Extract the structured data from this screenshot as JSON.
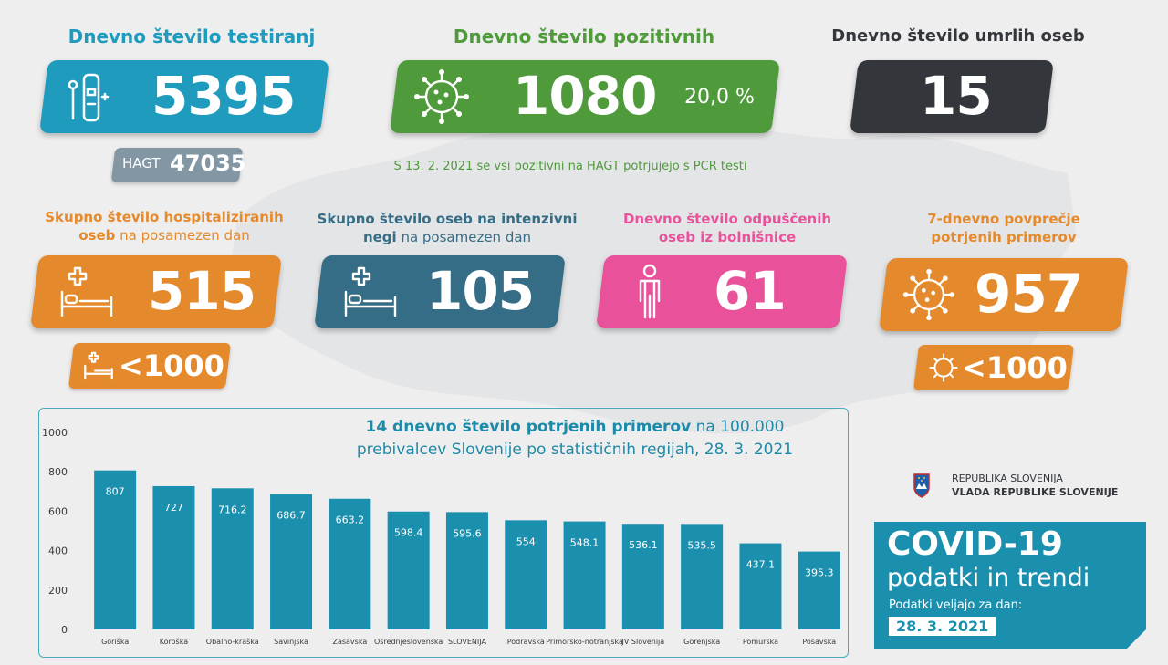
{
  "testing": {
    "title": "Dnevno število testiranj",
    "value": "5395",
    "hagt_label": "HAGT",
    "hagt_value": "47035"
  },
  "positive": {
    "title": "Dnevno število pozitivnih",
    "value": "1080",
    "percent": "20,0 %",
    "note": "S 13. 2. 2021 se vsi pozitivni na HAGT potrjujejo s PCR testi"
  },
  "deaths": {
    "title": "Dnevno število umrlih oseb",
    "value": "15"
  },
  "hospitalized": {
    "caption_bold": "Skupno število hospitaliziranih oseb",
    "caption_thin": " na posamezen dan",
    "value": "515",
    "threshold": "<1000"
  },
  "icu": {
    "caption_bold": "Skupno število oseb na intenzivni negi",
    "caption_thin": " na posamezen dan",
    "value": "105"
  },
  "discharged": {
    "caption": "Dnevno število odpuščenih oseb iz bolnišnice",
    "value": "61"
  },
  "avg7": {
    "caption": "7-dnevno povprečje potrjenih primerov",
    "value": "957",
    "threshold": "<1000"
  },
  "chart_data": {
    "type": "bar",
    "title_bold": "14 dnevno število potrjenih primerov",
    "title_rest": " na 100.000 prebivalcev Slovenije po statističnih regijah, 28. 3. 2021",
    "categories": [
      "Goriška",
      "Koroška",
      "Obalno-kraška",
      "Savinjska",
      "Zasavska",
      "Osrednjeslovenska",
      "SLOVENIJA",
      "Podravska",
      "Primorsko-notranjska",
      "JV Slovenija",
      "Gorenjska",
      "Pomurska",
      "Posavska"
    ],
    "values": [
      807,
      727,
      716.2,
      686.7,
      663.2,
      598.4,
      595.6,
      554,
      548.1,
      536.1,
      535.5,
      437.1,
      395.3
    ],
    "value_labels": [
      "807",
      "727",
      "716.2",
      "686.7",
      "663.2",
      "598.4",
      "595.6",
      "554",
      "548.1",
      "536.1",
      "535.5",
      "437.1",
      "395.3"
    ],
    "yticks": [
      "0",
      "200",
      "400",
      "600",
      "800",
      "1000"
    ],
    "ylim": [
      0,
      1000
    ],
    "bar_color": "#1b8fae",
    "grid": false
  },
  "gov": {
    "line1": "REPUBLIKA SLOVENIJA",
    "line2": "VLADA REPUBLIKE SLOVENIJE"
  },
  "covid": {
    "title": "COVID-19",
    "subtitle": "podatki in trendi",
    "valid_label": "Podatki veljajo za dan:",
    "date": "28. 3. 2021"
  },
  "colors": {
    "blue": "#1f9bbd",
    "green": "#4f9a3b",
    "dark": "#33363a",
    "orange": "#e58a2c",
    "slate": "#356c86",
    "pink": "#e9529b",
    "gray": "#8296a3"
  }
}
